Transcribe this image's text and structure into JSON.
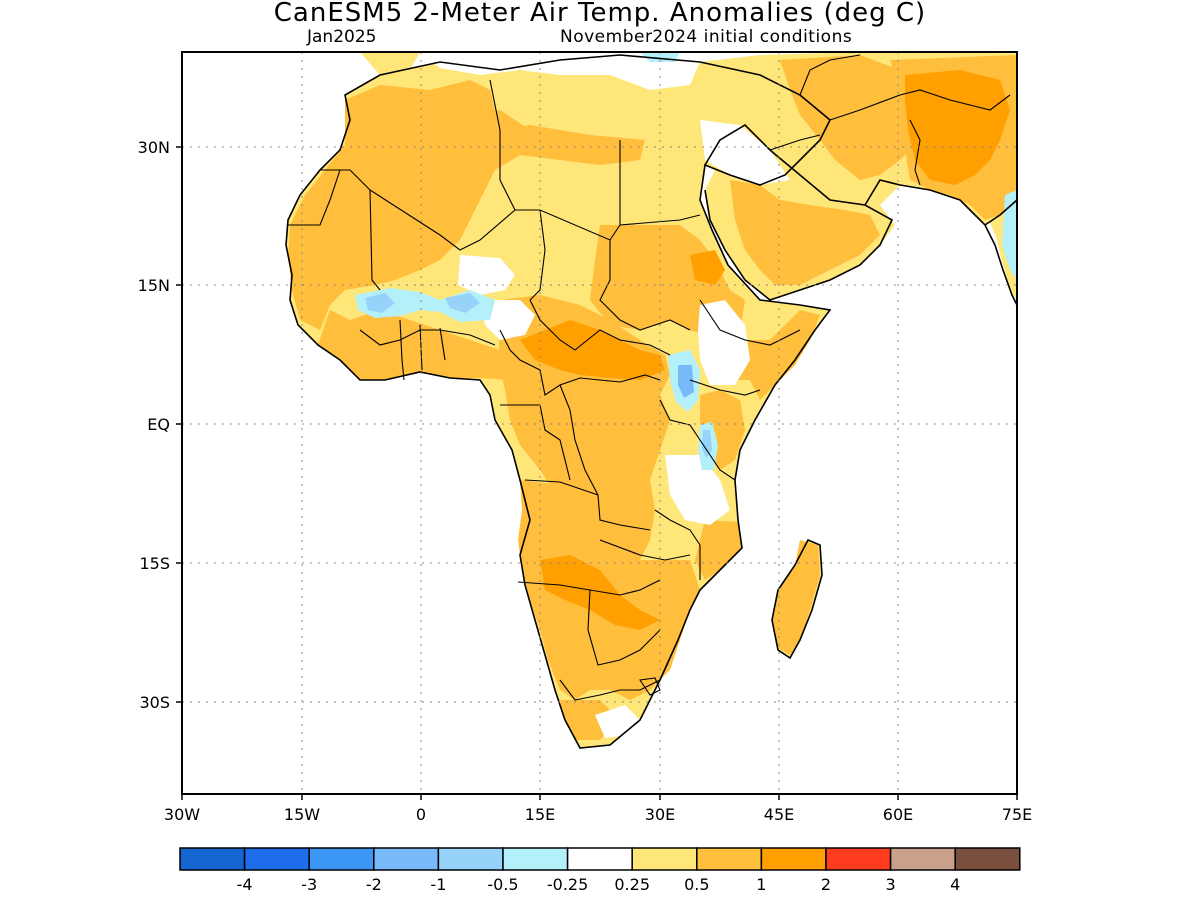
{
  "title": "CanESM5 2-Meter Air Temp. Anomalies (deg C)",
  "subtitle_left": "Jan2025",
  "subtitle_right": "November2024 initial conditions",
  "lat_ticks": [
    "30N",
    "15N",
    "EQ",
    "15S",
    "30S"
  ],
  "lon_ticks": [
    "30W",
    "15W",
    "0",
    "15E",
    "30E",
    "45E",
    "60E",
    "75E"
  ],
  "legend": {
    "colors": [
      "#1464d2",
      "#1e6eeb",
      "#3c96f5",
      "#78b9fa",
      "#96d2fa",
      "#b4f0fa",
      "#ffffff",
      "#ffe678",
      "#ffbe3c",
      "#ffa000",
      "#ff3c1e",
      "#c8a08c",
      "#7a4f3e"
    ],
    "labels": [
      "-4",
      "-3",
      "-2",
      "-1",
      "-0.5",
      "-0.25",
      "0.25",
      "0.5",
      "1",
      "2",
      "3",
      "4"
    ]
  },
  "anomaly_colors": {
    "light_orange": "#ffe678",
    "orange": "#ffbe3c",
    "dark_orange": "#ffa000",
    "light_blue": "#b4f0fa",
    "blue": "#96d2fa",
    "mid_blue": "#78b9fa"
  }
}
